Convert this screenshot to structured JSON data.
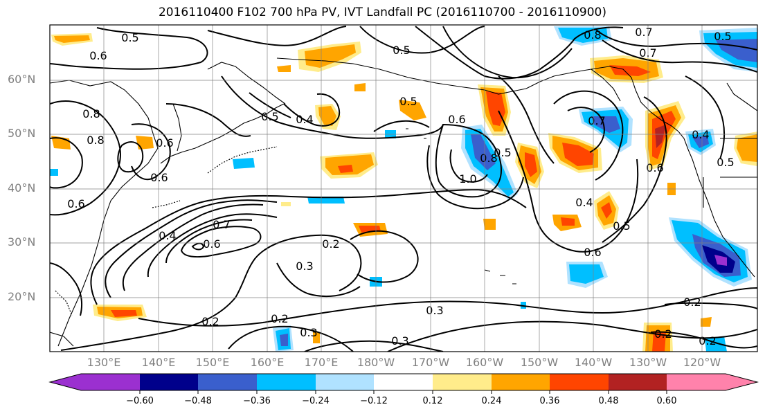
{
  "title": "2016110400 F102 700 hPa PV, IVT Landfall PC (2016110700 - 2016110900)",
  "lat_labels": [
    "60°N",
    "50°N",
    "40°N",
    "30°N",
    "20°N"
  ],
  "lon_labels": [
    "130°E",
    "140°E",
    "150°E",
    "160°E",
    "170°E",
    "180°W",
    "170°W",
    "160°W",
    "150°W",
    "140°W",
    "130°W",
    "120°W"
  ],
  "contour_labels": [
    "0.5",
    "0.6",
    "0.5",
    "0.5",
    "0.8",
    "0.7",
    "0.5",
    "0.8",
    "0.6",
    "0.4",
    "0.6",
    "0.5",
    "0.7",
    "0.4",
    "0.6",
    "0.8",
    "0.5",
    "1.0",
    "0.7",
    "0.6",
    "0.4",
    "0.5",
    "0.6",
    "0.8",
    "0.5",
    "0.4",
    "0.6",
    "0.7",
    "0.6",
    "0.2",
    "0.3",
    "0.3",
    "0.2",
    "0.3",
    "0.2",
    "0.3",
    "0.2",
    "0.2",
    "0.2"
  ],
  "colorbar": {
    "colors": [
      "#9b30d0",
      "#00008b",
      "#3a5fcd",
      "#00bfff",
      "#b0e2ff",
      "#ffffff",
      "#ffec8b",
      "#ffa500",
      "#ff4500",
      "#b22222",
      "#ff82ab"
    ],
    "tick_labels": [
      "−0.60",
      "−0.48",
      "−0.36",
      "−0.24",
      "−0.12",
      "0.12",
      "0.24",
      "0.36",
      "0.48",
      "0.60"
    ]
  }
}
